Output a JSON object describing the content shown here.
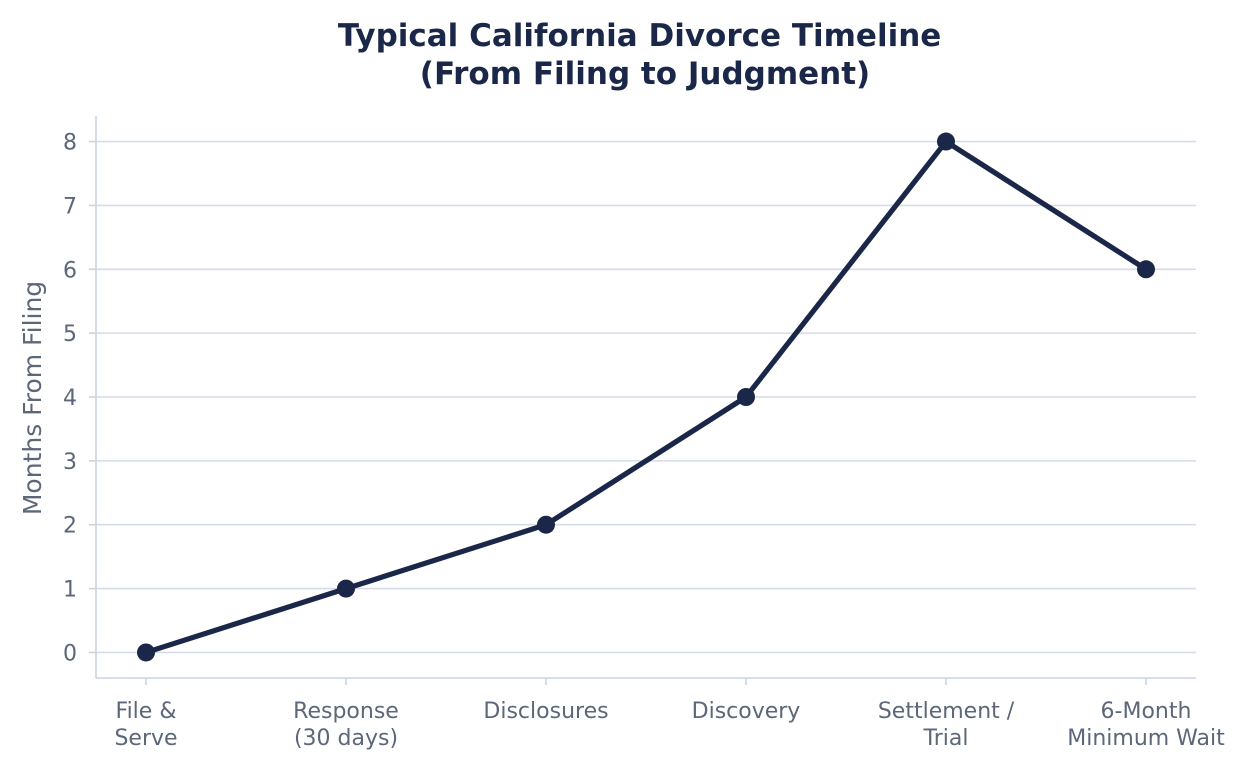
{
  "chart_data": {
    "type": "line",
    "title": [
      "Typical California Divorce Timeline",
      "(From Filing to Judgment)"
    ],
    "xlabel": "",
    "ylabel": "Months From Filing",
    "categories": [
      [
        "File &",
        "Serve"
      ],
      [
        "Response",
        "(30 days)"
      ],
      [
        "Disclosures"
      ],
      [
        "Discovery"
      ],
      [
        "Settlement /",
        "Trial"
      ],
      [
        "6-Month",
        "Minimum Wait"
      ]
    ],
    "values": [
      0,
      1,
      2,
      4,
      8,
      6
    ],
    "ylim": [
      -0.4,
      8.4
    ],
    "yticks": [
      0,
      1,
      2,
      3,
      4,
      5,
      6,
      7,
      8
    ],
    "grid": "horizontal",
    "legend": "none",
    "colors": {
      "line": "#1b2748",
      "marker": "#1b2748",
      "grid": "#d5dce8",
      "axis": "#ccd3df",
      "tick_text": "#5c6779",
      "title": "#1b2748"
    }
  }
}
